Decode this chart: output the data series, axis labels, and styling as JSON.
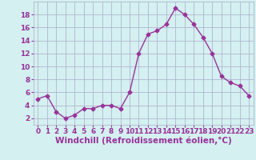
{
  "x": [
    0,
    1,
    2,
    3,
    4,
    5,
    6,
    7,
    8,
    9,
    10,
    11,
    12,
    13,
    14,
    15,
    16,
    17,
    18,
    19,
    20,
    21,
    22,
    23
  ],
  "y": [
    5,
    5.5,
    3,
    2,
    2.5,
    3.5,
    3.5,
    4,
    4,
    3.5,
    6,
    12,
    15,
    15.5,
    16.5,
    19,
    18,
    16.5,
    14.5,
    12,
    8.5,
    7.5,
    7,
    5.5
  ],
  "line_color": "#993399",
  "marker": "D",
  "marker_size": 2.5,
  "bg_color": "#d4f0f0",
  "grid_color": "#aaaacc",
  "xlabel": "Windchill (Refroidissement éolien,°C)",
  "xlabel_color": "#993399",
  "xlabel_fontsize": 7.5,
  "tick_color": "#993399",
  "tick_fontsize": 6.5,
  "ylim": [
    1,
    20
  ],
  "yticks": [
    2,
    4,
    6,
    8,
    10,
    12,
    14,
    16,
    18
  ],
  "xlim": [
    -0.5,
    23.5
  ],
  "xticks": [
    0,
    1,
    2,
    3,
    4,
    5,
    6,
    7,
    8,
    9,
    10,
    11,
    12,
    13,
    14,
    15,
    16,
    17,
    18,
    19,
    20,
    21,
    22,
    23
  ]
}
